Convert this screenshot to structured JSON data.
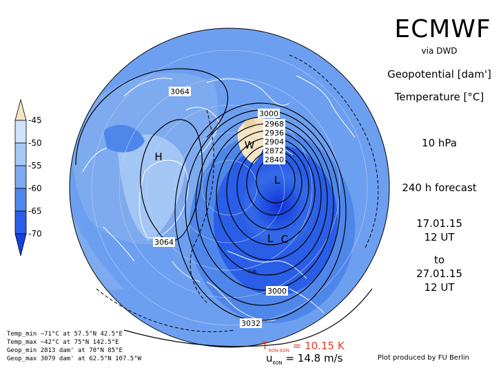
{
  "header": {
    "model": "ECMWF",
    "source": "via DWD",
    "field1": "Geopotential [dam']",
    "field2": "Temperature [°C]",
    "level": "10 hPa",
    "forecast": "240 h forecast",
    "valid_from_date": "17.01.15",
    "valid_from_time": "12 UT",
    "to_label": "to",
    "valid_to_date": "27.01.15",
    "valid_to_time": "12 UT"
  },
  "colorbar": {
    "labels": [
      "-45",
      "-50",
      "-55",
      "-60",
      "-65",
      "-70"
    ],
    "colors": [
      "#f4e6c4",
      "#cfe3fb",
      "#a8c9f5",
      "#7eaaef",
      "#4f86ea",
      "#2a5ee6",
      "#1440e0"
    ]
  },
  "map": {
    "ocean_color": "#6d9ff0",
    "contour_labels": [
      {
        "text": "3064"
      },
      {
        "text": "3064"
      },
      {
        "text": "3000"
      },
      {
        "text": "2968"
      },
      {
        "text": "2936"
      },
      {
        "text": "2904"
      },
      {
        "text": "2872"
      },
      {
        "text": "2840"
      },
      {
        "text": "3000"
      },
      {
        "text": "3032"
      }
    ],
    "centers": [
      {
        "text": "H"
      },
      {
        "text": "L"
      },
      {
        "text": "L"
      },
      {
        "text": "W"
      },
      {
        "text": "C"
      }
    ],
    "small_label": "FUB"
  },
  "stats": {
    "temp_min": "Temp_min −71°C at 57.5°N 42.5°E",
    "temp_max": "Temp_max −42°C at 75°N 142.5°E",
    "geop_min": "Geop_min 2813 dam' at 70°N 85°E",
    "geop_max": "Geop_max 3079 dam' at 62.5°N 107.5°W"
  },
  "indices": {
    "t_label": "T",
    "t_sub": "90N-60N",
    "t_value": " = 10.15 K",
    "u_label": "u",
    "u_sub": "60N",
    "u_value": " = 14.8 m/s"
  },
  "credit": "Plot produced by FU Berlin"
}
